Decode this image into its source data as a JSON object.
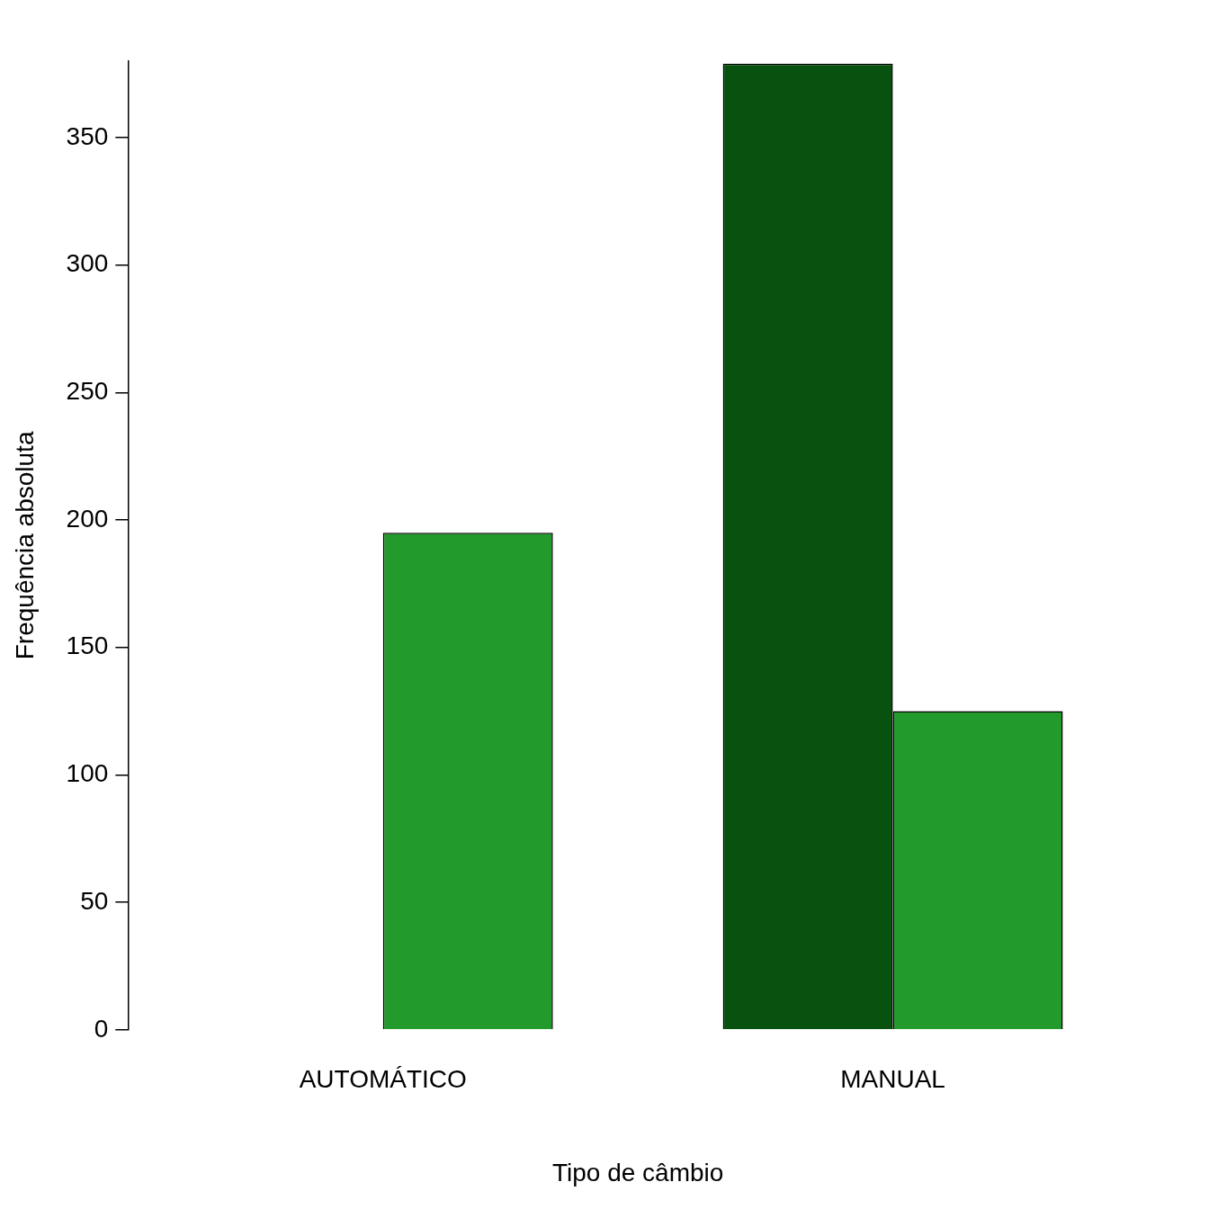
{
  "chart_data": {
    "type": "bar",
    "xlabel": "Tipo de câmbio",
    "ylabel": "Frequência absoluta",
    "categories": [
      "AUTOMÁTICO",
      "MANUAL"
    ],
    "series": [
      {
        "color": "#06520e",
        "values": [
          0,
          379
        ]
      },
      {
        "color": "#239b2c",
        "values": [
          195,
          125
        ]
      }
    ],
    "ylim": [
      0,
      380
    ],
    "yticks": [
      0,
      50,
      100,
      150,
      200,
      250,
      300,
      350
    ],
    "grid": false,
    "legend": false
  }
}
